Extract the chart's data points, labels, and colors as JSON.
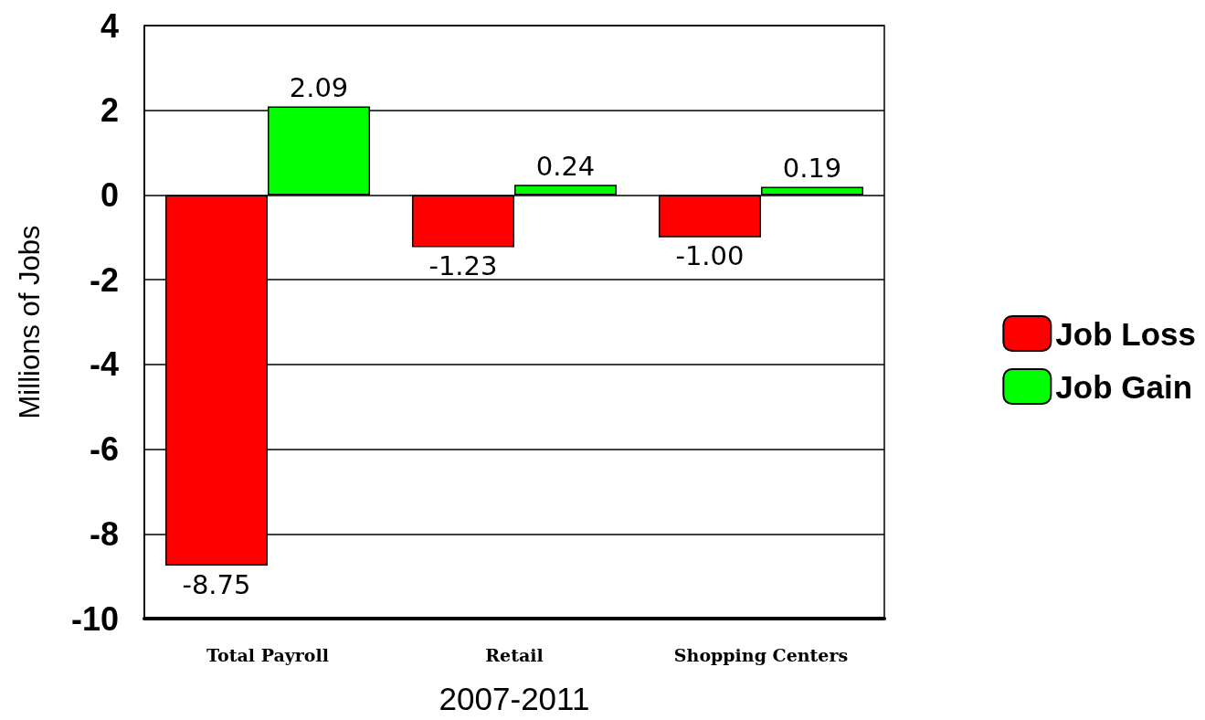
{
  "chart_data": {
    "type": "bar",
    "xlabel": "2007-2011",
    "ylabel": "Millions of Jobs",
    "categories": [
      "Total Payroll",
      "Retail",
      "Shopping Centers"
    ],
    "series": [
      {
        "name": "Job Loss",
        "color": "#ff0000",
        "values": [
          -8.75,
          -1.23,
          -1.0
        ],
        "value_labels": [
          "-8.75",
          "-1.23",
          "-1.00"
        ]
      },
      {
        "name": "Job Gain",
        "color": "#00ff00",
        "values": [
          2.09,
          0.24,
          0.19
        ],
        "value_labels": [
          "2.09",
          "0.24",
          "0.19"
        ]
      }
    ],
    "ylim": [
      -10,
      4
    ],
    "yticks": [
      -10,
      -8,
      -6,
      -4,
      -2,
      0,
      2,
      4
    ],
    "grid": "y",
    "legend": "right"
  }
}
